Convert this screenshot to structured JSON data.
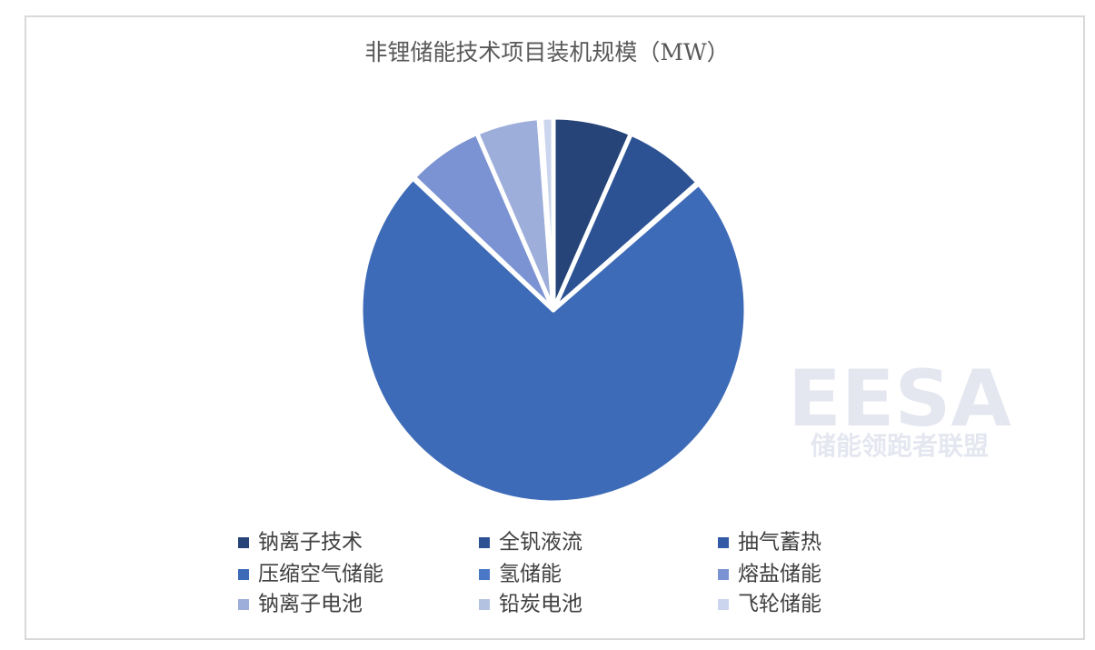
{
  "chart_data": {
    "type": "pie",
    "title": "非锂储能技术项目装机规模（MW）",
    "categories": [
      "钠离子技术",
      "全钒液流",
      "抽气蓄热",
      "压缩空气储能",
      "氢储能",
      "熔盐储能",
      "钠离子电池",
      "铅炭电池",
      "飞轮储能"
    ],
    "values": [
      6.6,
      6.9,
      0.1,
      73.4,
      0.1,
      6.4,
      5.3,
      0.2,
      1.0
    ],
    "colors": [
      "#264478",
      "#2c5294",
      "#325aa6",
      "#3e6bb7",
      "#4a78c6",
      "#7b93d2",
      "#9daedb",
      "#b4c2e2",
      "#cbd5ee"
    ],
    "legend": "bottom"
  },
  "watermark": {
    "logo": "EESA",
    "text": "储能领跑者联盟"
  }
}
